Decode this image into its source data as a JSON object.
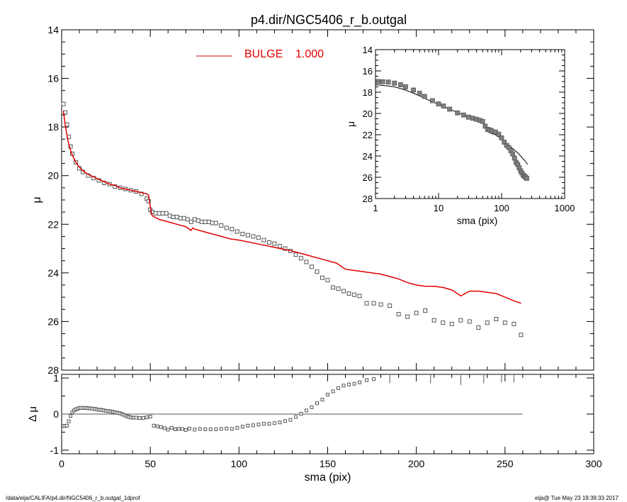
{
  "title": "p4.dir/NGC5406_r_b.outgal",
  "footer": {
    "left": "/data/eija/CALIFA/p4.dir/NGC5406_r_b.outgal_1dprof",
    "right": "eija@  Tue May 23 19:39:33 2017"
  },
  "colors": {
    "model": "#e00000",
    "data_points": "#808080",
    "axes": "#000000"
  },
  "chart_data": [
    {
      "name": "main",
      "type": "scatter",
      "xlabel": "",
      "ylabel": "μ",
      "xlim": [
        0,
        300
      ],
      "ylim": [
        28,
        14
      ],
      "xticks": [
        0,
        50,
        100,
        150,
        200,
        250,
        300
      ],
      "yticks": [
        14,
        16,
        18,
        20,
        22,
        24,
        26,
        28
      ],
      "legend": {
        "label": "BULGE",
        "value": "1.000",
        "placement": "top-center"
      },
      "series": [
        {
          "name": "data",
          "style": "open-squares",
          "x": [
            1,
            2,
            3,
            4,
            5,
            6,
            8,
            10,
            12,
            15,
            18,
            21,
            24,
            27,
            30,
            33,
            36,
            39,
            42,
            45,
            48,
            49,
            50,
            51,
            53,
            55,
            57,
            59,
            61,
            63,
            65,
            67,
            69,
            71,
            73,
            75,
            77,
            79,
            81,
            83,
            85,
            87,
            90,
            93,
            96,
            99,
            102,
            105,
            108,
            111,
            114,
            117,
            120,
            123,
            126,
            129,
            132,
            135,
            138,
            141,
            144,
            147,
            150,
            153,
            156,
            159,
            162,
            165,
            168,
            172,
            176,
            180,
            185,
            190,
            195,
            200,
            205,
            210,
            215,
            220,
            225,
            230,
            235,
            240,
            245,
            250,
            255,
            259
          ],
          "y": [
            17.05,
            17.4,
            17.9,
            18.4,
            18.8,
            19.1,
            19.45,
            19.7,
            19.85,
            20.0,
            20.1,
            20.2,
            20.3,
            20.35,
            20.45,
            20.5,
            20.55,
            20.6,
            20.65,
            20.75,
            20.95,
            21.05,
            21.4,
            21.5,
            21.55,
            21.55,
            21.55,
            21.55,
            21.65,
            21.7,
            21.7,
            21.75,
            21.75,
            21.8,
            21.9,
            21.8,
            21.85,
            21.9,
            21.9,
            21.9,
            21.95,
            21.95,
            22.05,
            22.15,
            22.2,
            22.3,
            22.4,
            22.45,
            22.5,
            22.55,
            22.65,
            22.75,
            22.8,
            22.9,
            23.0,
            23.1,
            23.25,
            23.4,
            23.55,
            23.75,
            23.95,
            24.2,
            24.3,
            24.6,
            24.65,
            24.75,
            24.85,
            24.9,
            24.95,
            25.25,
            25.25,
            25.3,
            25.35,
            25.7,
            25.8,
            25.65,
            25.55,
            25.95,
            26.05,
            26.1,
            25.95,
            26.0,
            26.25,
            26.05,
            25.9,
            26.05,
            26.1,
            26.55
          ]
        },
        {
          "name": "model",
          "style": "line",
          "x": [
            1,
            2,
            3,
            4,
            5,
            6,
            8,
            10,
            12,
            15,
            18,
            21,
            24,
            27,
            30,
            33,
            36,
            39,
            42,
            45,
            48,
            49,
            50,
            51,
            55,
            60,
            65,
            70,
            73,
            74,
            75,
            80,
            85,
            90,
            95,
            100,
            110,
            120,
            130,
            140,
            150,
            155,
            160,
            165,
            170,
            175,
            180,
            185,
            190,
            195,
            200,
            205,
            210,
            215,
            220,
            225,
            230,
            235,
            240,
            245,
            250,
            255,
            259
          ],
          "y": [
            17.35,
            17.9,
            18.35,
            18.7,
            18.95,
            19.15,
            19.45,
            19.65,
            19.8,
            19.95,
            20.05,
            20.15,
            20.25,
            20.35,
            20.4,
            20.5,
            20.55,
            20.6,
            20.65,
            20.7,
            20.75,
            20.8,
            21.3,
            21.65,
            21.8,
            21.9,
            22.0,
            22.1,
            22.25,
            22.15,
            22.2,
            22.3,
            22.4,
            22.5,
            22.6,
            22.65,
            22.8,
            22.95,
            23.1,
            23.3,
            23.5,
            23.6,
            23.85,
            23.9,
            23.95,
            24.0,
            24.05,
            24.15,
            24.25,
            24.4,
            24.5,
            24.55,
            24.55,
            24.6,
            24.7,
            24.95,
            24.75,
            24.75,
            24.8,
            24.85,
            25.0,
            25.15,
            25.25
          ]
        }
      ]
    },
    {
      "name": "residuals",
      "type": "scatter",
      "xlabel": "sma (pix)",
      "ylabel": "Δ μ",
      "xlim": [
        0,
        300
      ],
      "ylim": [
        -1.1,
        1.1
      ],
      "xticks": [
        0,
        50,
        100,
        150,
        200,
        250,
        300
      ],
      "yticks": [
        -1,
        0,
        1
      ],
      "zero_line_xmax": 260,
      "series": [
        {
          "name": "delta",
          "style": "open-squares",
          "x": [
            1,
            2,
            3,
            4,
            5,
            6,
            7,
            8,
            9,
            10,
            11,
            12,
            13,
            14,
            15,
            16,
            17,
            18,
            19,
            20,
            21,
            22,
            23,
            24,
            25,
            26,
            27,
            28,
            29,
            30,
            31,
            32,
            33,
            34,
            35,
            36,
            37,
            38,
            39,
            40,
            41,
            42,
            44,
            46,
            48,
            50,
            52,
            54,
            56,
            58,
            60,
            62,
            64,
            66,
            68,
            70,
            72,
            75,
            78,
            81,
            84,
            87,
            90,
            93,
            96,
            99,
            102,
            105,
            108,
            111,
            114,
            117,
            120,
            123,
            126,
            129,
            132,
            135,
            138,
            141,
            144,
            147,
            150,
            153,
            156,
            159,
            162,
            165,
            168,
            172,
            176
          ],
          "y": [
            -0.33,
            -0.33,
            -0.32,
            -0.2,
            -0.05,
            0.05,
            0.1,
            0.13,
            0.15,
            0.17,
            0.17,
            0.17,
            0.17,
            0.17,
            0.16,
            0.16,
            0.15,
            0.15,
            0.14,
            0.13,
            0.12,
            0.12,
            0.11,
            0.1,
            0.09,
            0.08,
            0.08,
            0.07,
            0.06,
            0.05,
            0.04,
            0.03,
            0.02,
            0.0,
            -0.02,
            -0.04,
            -0.06,
            -0.08,
            -0.09,
            -0.1,
            -0.1,
            -0.1,
            -0.11,
            -0.11,
            -0.09,
            -0.07,
            -0.32,
            -0.34,
            -0.36,
            -0.39,
            -0.43,
            -0.38,
            -0.42,
            -0.41,
            -0.41,
            -0.44,
            -0.4,
            -0.43,
            -0.41,
            -0.42,
            -0.42,
            -0.42,
            -0.41,
            -0.4,
            -0.41,
            -0.38,
            -0.35,
            -0.32,
            -0.31,
            -0.29,
            -0.27,
            -0.27,
            -0.25,
            -0.23,
            -0.19,
            -0.16,
            -0.08,
            0.01,
            0.1,
            0.19,
            0.3,
            0.4,
            0.54,
            0.63,
            0.72,
            0.79,
            0.82,
            0.84,
            0.88,
            0.94,
            0.97
          ]
        }
      ],
      "error_bars": {
        "x": [
          185,
          208,
          225,
          238,
          248,
          255
        ],
        "y": [
          1.05,
          1.05,
          1.0,
          1.05,
          1.07,
          1.07
        ]
      }
    },
    {
      "name": "inset",
      "type": "scatter",
      "xlabel": "sma (pix)",
      "ylabel": "μ",
      "xscale": "log",
      "xlim": [
        1,
        1000
      ],
      "ylim": [
        28,
        14
      ],
      "xticks": [
        1,
        10,
        100,
        1000
      ],
      "yticks": [
        14,
        16,
        18,
        20,
        22,
        24,
        26,
        28
      ],
      "series": [
        {
          "name": "data",
          "style": "filled-squares",
          "x": [
            1.1,
            1.3,
            1.6,
            2,
            2.5,
            3,
            4,
            5,
            6,
            8,
            10,
            12,
            15,
            20,
            25,
            30,
            35,
            40,
            45,
            50,
            55,
            60,
            65,
            70,
            80,
            90,
            100,
            110,
            120,
            130,
            140,
            150,
            160,
            170,
            180,
            190,
            200,
            210,
            220,
            230,
            240,
            250
          ],
          "y": [
            17.0,
            17.02,
            17.05,
            17.15,
            17.3,
            17.5,
            17.8,
            18.1,
            18.4,
            18.8,
            19.1,
            19.3,
            19.6,
            19.95,
            20.15,
            20.35,
            20.45,
            20.55,
            20.65,
            20.75,
            21.2,
            21.5,
            21.55,
            21.65,
            21.75,
            21.95,
            22.3,
            22.7,
            23.0,
            23.2,
            23.5,
            23.8,
            24.2,
            24.6,
            24.8,
            25.1,
            25.4,
            25.6,
            25.8,
            25.9,
            26.0,
            26.1
          ]
        },
        {
          "name": "model",
          "style": "line",
          "x": [
            1,
            1.5,
            2,
            3,
            4,
            5,
            7,
            10,
            15,
            20,
            30,
            40,
            50,
            55,
            60,
            70,
            80,
            100,
            120,
            150,
            180,
            200,
            230,
            260
          ],
          "y": [
            17.3,
            17.4,
            17.5,
            17.8,
            18.1,
            18.35,
            18.75,
            19.15,
            19.6,
            19.9,
            20.3,
            20.6,
            20.8,
            21.3,
            21.7,
            21.9,
            22.0,
            22.4,
            22.8,
            23.3,
            23.7,
            24.0,
            24.4,
            24.8
          ]
        }
      ]
    }
  ]
}
